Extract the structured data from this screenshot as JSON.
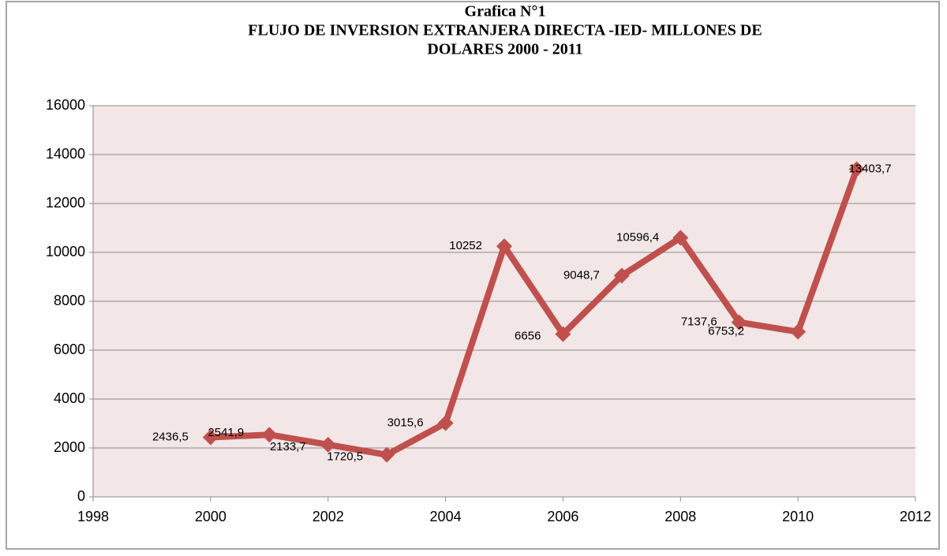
{
  "chart_data": {
    "type": "line",
    "title": [
      "Grafica N°1",
      "FLUJO DE INVERSION EXTRANJERA DIRECTA -IED- MILLONES DE",
      "DOLARES 2000 - 2011"
    ],
    "x": [
      2000,
      2001,
      2002,
      2003,
      2004,
      2005,
      2006,
      2007,
      2008,
      2009,
      2010,
      2011
    ],
    "series": [
      {
        "color": "#c0504d",
        "values": [
          2436.5,
          2541.9,
          2133.7,
          1720.5,
          3015.6,
          10252,
          6656,
          9048.7,
          10596.4,
          7137.6,
          6753.2,
          13403.7
        ],
        "value_labels": [
          "2436,5",
          "2541,9",
          "2133,7",
          "1720,5",
          "3015,6",
          "10252",
          "6656",
          "9048,7",
          "10596,4",
          "7137,6",
          "6753,2",
          "13403,7"
        ]
      }
    ],
    "xlim": [
      1998,
      2012
    ],
    "xticks": [
      1998,
      2000,
      2002,
      2004,
      2006,
      2008,
      2010,
      2012
    ],
    "ylim": [
      0,
      16000
    ],
    "yticks": [
      0,
      2000,
      4000,
      6000,
      8000,
      10000,
      12000,
      14000,
      16000
    ],
    "grid": true
  }
}
